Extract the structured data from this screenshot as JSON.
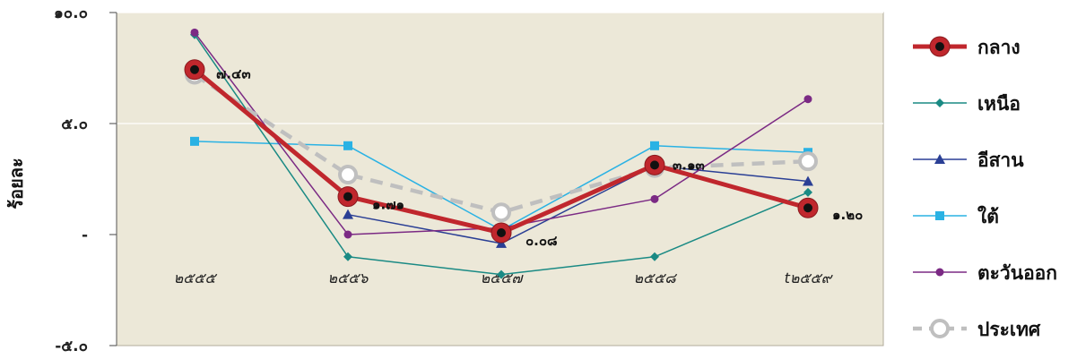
{
  "chart_data": {
    "type": "line",
    "title": "",
    "xlabel": "",
    "ylabel": "ร้อยละ",
    "categories": [
      "๒๕๕๕",
      "๒๕๕๖",
      "๒๕๕๗",
      "๒๕๕๘",
      "t๒๕๕๙"
    ],
    "y_ticks": [
      "๑๐.๐",
      "๕.๐",
      "-",
      "-๕.๐"
    ],
    "ylim": [
      -5,
      10
    ],
    "grid": "horizontal",
    "legend_position": "right",
    "series": [
      {
        "name": "กลาง",
        "color": "#c0272d",
        "values": [
          7.43,
          1.71,
          0.08,
          3.13,
          1.2
        ],
        "labels": [
          "๗.๔๓",
          "๑.๗๑",
          "๐.๐๘",
          "๓.๑๓",
          "๑.๒๐"
        ]
      },
      {
        "name": "เหนือ",
        "color": "#1a8a84",
        "values": [
          9.0,
          -1.0,
          -1.8,
          -1.0,
          1.9
        ]
      },
      {
        "name": "อีสาน",
        "color": "#2a3f95",
        "values": [
          null,
          0.9,
          -0.4,
          3.1,
          2.4
        ]
      },
      {
        "name": "ใต้",
        "color": "#2ab2e4",
        "values": [
          4.2,
          4.0,
          0.2,
          4.0,
          3.7
        ]
      },
      {
        "name": "ตะวันออก",
        "color": "#7b2a84",
        "values": [
          9.1,
          0.0,
          0.3,
          1.6,
          6.1
        ]
      },
      {
        "name": "ประเทศ",
        "color": "#bfbfbf",
        "values": [
          7.2,
          2.7,
          1.0,
          3.0,
          3.3
        ]
      }
    ]
  }
}
